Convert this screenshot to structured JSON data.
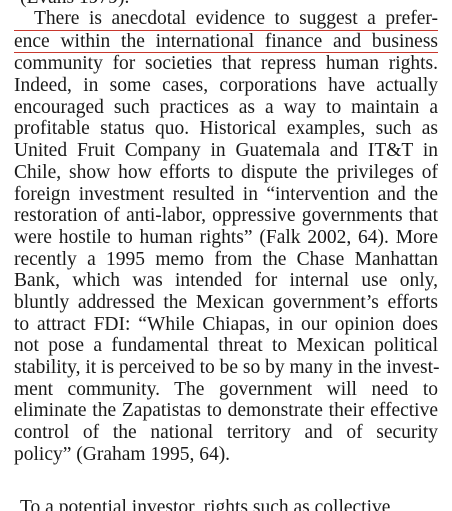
{
  "document": {
    "prev_line_fragment": "(Evans 1979).",
    "next_line_fragment": "To a potential investor, rights such as collective",
    "highlight_color": "#c8372d",
    "paragraph_lines": [
      "There is anecdotal evidence to suggest a prefer-",
      "ence within the international finance and business",
      "community for societies that repress human rights.",
      "Indeed, in some cases, corporations have actually",
      "encouraged such practices as a way to maintain a",
      "profitable status quo. Historical examples, such as",
      "United Fruit Company in Guatemala and IT&T in",
      "Chile, show how efforts to dispute the privileges of",
      "foreign investment resulted in “intervention and the",
      "restoration of anti-labor, oppressive governments that",
      "were hostile to human rights” (Falk 2002, 64). More",
      "recently a 1995 memo from the Chase Manhattan",
      "Bank, which was intended for internal use only,",
      "bluntly addressed the Mexican government’s efforts",
      "to attract FDI: “While Chiapas, in our opinion does",
      "not pose a fundamental threat to Mexican political",
      "stability, it is perceived to be so by many in the invest-",
      "ment community. The government will need to",
      "eliminate the Zapatistas to demonstrate their effective",
      "control of the national territory and of security",
      "policy” (Graham 1995, 64)."
    ]
  }
}
